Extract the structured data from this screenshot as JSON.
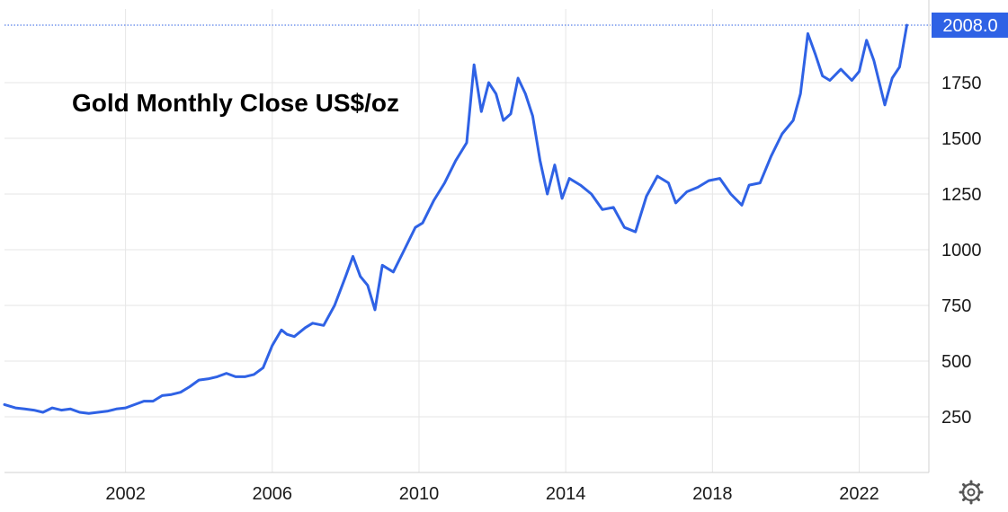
{
  "chart_data": {
    "type": "line",
    "title": "Gold Monthly Close US$/oz",
    "xlabel": "",
    "ylabel": "",
    "x_tick_labels": [
      "2002",
      "2006",
      "2010",
      "2014",
      "2018",
      "2022"
    ],
    "y_tick_labels": [
      "250",
      "500",
      "750",
      "1000",
      "1250",
      "1500",
      "1750"
    ],
    "xlim": [
      1998.7,
      2023.9
    ],
    "ylim": [
      0,
      2020
    ],
    "grid": true,
    "last_value_label": "2008.0",
    "series": [
      {
        "x": [
          1998.7,
          1999.0,
          1999.25,
          1999.5,
          1999.75,
          2000.0,
          2000.25,
          2000.5,
          2000.75,
          2001.0,
          2001.25,
          2001.5,
          2001.75,
          2002.0,
          2002.25,
          2002.5,
          2002.75,
          2003.0,
          2003.25,
          2003.5,
          2003.75,
          2004.0,
          2004.25,
          2004.5,
          2004.75,
          2005.0,
          2005.25,
          2005.5,
          2005.75,
          2006.0,
          2006.25,
          2006.4,
          2006.6,
          2006.9,
          2007.1,
          2007.4,
          2007.7,
          2008.0,
          2008.2,
          2008.4,
          2008.6,
          2008.8,
          2009.0,
          2009.3,
          2009.6,
          2009.9,
          2010.1,
          2010.4,
          2010.7,
          2011.0,
          2011.3,
          2011.5,
          2011.7,
          2011.9,
          2012.1,
          2012.3,
          2012.5,
          2012.7,
          2012.9,
          2013.1,
          2013.3,
          2013.5,
          2013.7,
          2013.9,
          2014.1,
          2014.4,
          2014.7,
          2015.0,
          2015.3,
          2015.6,
          2015.9,
          2016.2,
          2016.5,
          2016.8,
          2017.0,
          2017.3,
          2017.6,
          2017.9,
          2018.2,
          2018.5,
          2018.8,
          2019.0,
          2019.3,
          2019.6,
          2019.9,
          2020.2,
          2020.4,
          2020.6,
          2020.8,
          2021.0,
          2021.2,
          2021.5,
          2021.8,
          2022.0,
          2022.2,
          2022.4,
          2022.7,
          2022.9,
          2023.1,
          2023.3
        ],
        "values": [
          305,
          290,
          285,
          280,
          270,
          290,
          280,
          285,
          270,
          265,
          270,
          275,
          285,
          290,
          305,
          320,
          320,
          345,
          350,
          360,
          385,
          415,
          420,
          430,
          445,
          430,
          430,
          440,
          470,
          570,
          640,
          620,
          610,
          650,
          670,
          660,
          750,
          880,
          970,
          880,
          840,
          730,
          930,
          900,
          1000,
          1100,
          1120,
          1220,
          1300,
          1400,
          1480,
          1830,
          1620,
          1750,
          1700,
          1580,
          1610,
          1770,
          1700,
          1600,
          1400,
          1250,
          1380,
          1230,
          1320,
          1290,
          1250,
          1180,
          1190,
          1100,
          1080,
          1240,
          1330,
          1300,
          1210,
          1260,
          1280,
          1310,
          1320,
          1250,
          1200,
          1290,
          1300,
          1420,
          1520,
          1580,
          1700,
          1970,
          1880,
          1780,
          1760,
          1810,
          1760,
          1800,
          1940,
          1850,
          1650,
          1770,
          1820,
          2008
        ]
      }
    ]
  },
  "colors": {
    "line": "#2f62e5",
    "label_bg": "#2f62e5",
    "grid": "#e6e6e6",
    "axis": "#d0d0d0"
  },
  "icons": {
    "settings": "gear-icon"
  }
}
